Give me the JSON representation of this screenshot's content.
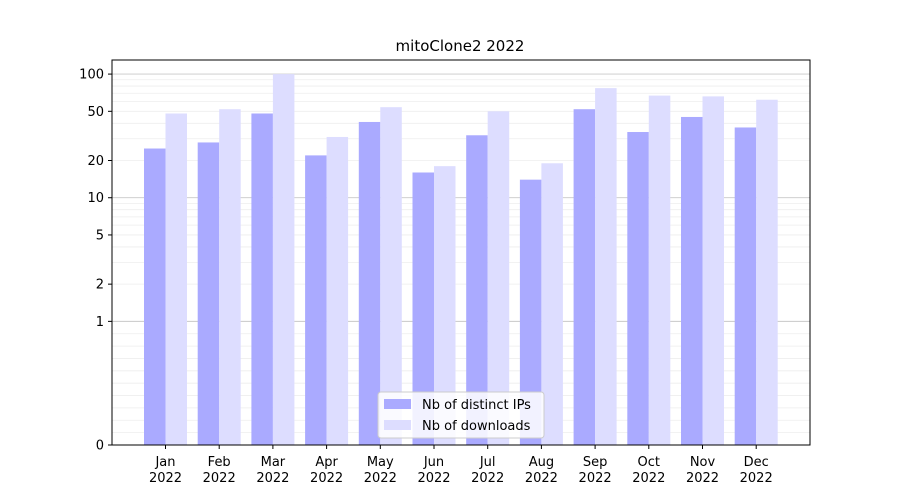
{
  "chart_data": {
    "type": "bar",
    "title": "mitoClone2 2022",
    "xlabel": "",
    "ylabel": "",
    "yscale": "symlog",
    "ylim": [
      0,
      130
    ],
    "yticks": [
      0,
      1,
      2,
      5,
      10,
      20,
      50,
      100
    ],
    "ytick_labels": [
      "0",
      "1",
      "2",
      "5",
      "10",
      "20",
      "50",
      "100"
    ],
    "grid": "horizontal",
    "legend_position": "bottom-center",
    "categories": [
      [
        "Jan",
        "2022"
      ],
      [
        "Feb",
        "2022"
      ],
      [
        "Mar",
        "2022"
      ],
      [
        "Apr",
        "2022"
      ],
      [
        "May",
        "2022"
      ],
      [
        "Jun",
        "2022"
      ],
      [
        "Jul",
        "2022"
      ],
      [
        "Aug",
        "2022"
      ],
      [
        "Sep",
        "2022"
      ],
      [
        "Oct",
        "2022"
      ],
      [
        "Nov",
        "2022"
      ],
      [
        "Dec",
        "2022"
      ]
    ],
    "series": [
      {
        "name": "Nb of distinct IPs",
        "color": "#aaaaff",
        "values": [
          25,
          28,
          48,
          22,
          41,
          16,
          32,
          14,
          52,
          34,
          45,
          37
        ]
      },
      {
        "name": "Nb of downloads",
        "color": "#ddddff",
        "values": [
          48,
          52,
          100,
          31,
          54,
          18,
          50,
          19,
          77,
          67,
          66,
          62
        ]
      }
    ]
  }
}
